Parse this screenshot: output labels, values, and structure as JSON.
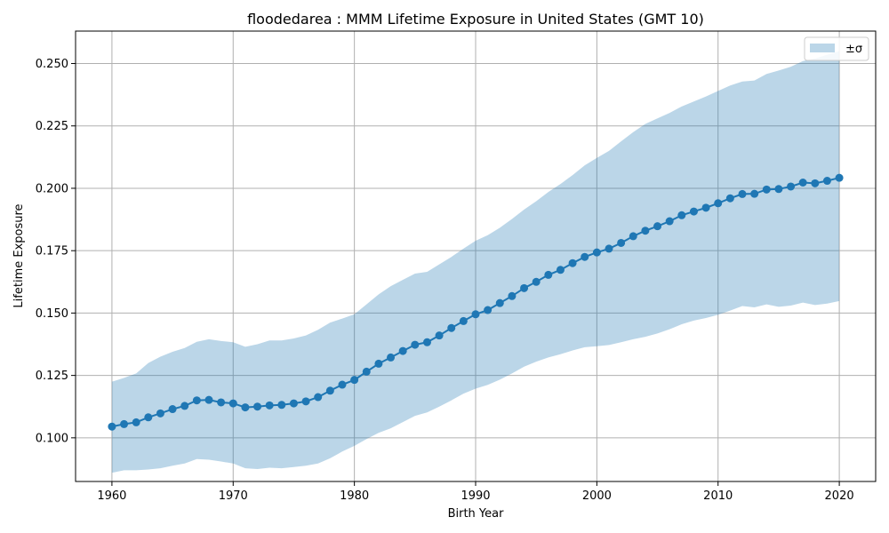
{
  "chart_data": {
    "type": "line",
    "title": "floodedarea : MMM Lifetime Exposure in United States (GMT 10)",
    "xlabel": "Birth Year",
    "ylabel": "Lifetime Exposure",
    "xlim": [
      1957,
      2023
    ],
    "ylim": [
      0.0825,
      0.263
    ],
    "x_ticks": [
      1960,
      1970,
      1980,
      1990,
      2000,
      2010,
      2020
    ],
    "y_ticks": [
      0.1,
      0.125,
      0.15,
      0.175,
      0.2,
      0.225,
      0.25
    ],
    "y_tick_labels": [
      "0.100",
      "0.125",
      "0.150",
      "0.175",
      "0.200",
      "0.225",
      "0.250"
    ],
    "grid": true,
    "legend": {
      "position": "top-right",
      "entries": [
        {
          "label": "±σ",
          "type": "band"
        }
      ]
    },
    "colors": {
      "line": "#1f77b4",
      "band": "#1f77b4",
      "band_alpha": 0.3
    },
    "series": [
      {
        "x": [
          1960,
          1961,
          1962,
          1963,
          1964,
          1965,
          1966,
          1967,
          1968,
          1969,
          1970,
          1971,
          1972,
          1973,
          1974,
          1975,
          1976,
          1977,
          1978,
          1979,
          1980,
          1981,
          1982,
          1983,
          1984,
          1985,
          1986,
          1987,
          1988,
          1989,
          1990,
          1991,
          1992,
          1993,
          1994,
          1995,
          1996,
          1997,
          1998,
          1999,
          2000,
          2001,
          2002,
          2003,
          2004,
          2005,
          2006,
          2007,
          2008,
          2009,
          2010,
          2011,
          2012,
          2013,
          2014,
          2015,
          2016,
          2017,
          2018,
          2019,
          2020
        ],
        "values": [
          0.1045,
          0.1055,
          0.1062,
          0.1082,
          0.1098,
          0.1115,
          0.1128,
          0.115,
          0.1152,
          0.1142,
          0.1138,
          0.1122,
          0.1125,
          0.113,
          0.1132,
          0.1138,
          0.1146,
          0.1163,
          0.1189,
          0.1213,
          0.1232,
          0.1265,
          0.1297,
          0.1322,
          0.1348,
          0.1373,
          0.1383,
          0.141,
          0.144,
          0.1468,
          0.1495,
          0.1512,
          0.154,
          0.1568,
          0.16,
          0.1625,
          0.1653,
          0.1673,
          0.17,
          0.1725,
          0.1743,
          0.1758,
          0.1781,
          0.1808,
          0.183,
          0.1848,
          0.1868,
          0.1892,
          0.1907,
          0.1922,
          0.194,
          0.196,
          0.1977,
          0.1978,
          0.1995,
          0.1997,
          0.2007,
          0.2023,
          0.202,
          0.203,
          0.2042
        ],
        "upper": [
          0.1225,
          0.124,
          0.1258,
          0.13,
          0.1325,
          0.1345,
          0.136,
          0.1385,
          0.1395,
          0.1388,
          0.1383,
          0.1365,
          0.1375,
          0.139,
          0.139,
          0.1398,
          0.141,
          0.1433,
          0.1462,
          0.1478,
          0.1495,
          0.1535,
          0.1575,
          0.1608,
          0.1633,
          0.1658,
          0.1665,
          0.1695,
          0.1725,
          0.1758,
          0.179,
          0.1812,
          0.1842,
          0.1877,
          0.1915,
          0.1948,
          0.1985,
          0.2017,
          0.2053,
          0.2092,
          0.2122,
          0.215,
          0.2188,
          0.2225,
          0.2258,
          0.228,
          0.2302,
          0.2328,
          0.2348,
          0.2368,
          0.239,
          0.2412,
          0.2428,
          0.2432,
          0.2458,
          0.2472,
          0.2487,
          0.251,
          0.252,
          0.2535,
          0.255
        ],
        "lower": [
          0.086,
          0.087,
          0.087,
          0.0873,
          0.0878,
          0.0888,
          0.0897,
          0.0915,
          0.0912,
          0.0905,
          0.0897,
          0.0878,
          0.0875,
          0.088,
          0.0878,
          0.0883,
          0.0888,
          0.0897,
          0.0918,
          0.0945,
          0.0968,
          0.0995,
          0.102,
          0.1038,
          0.1063,
          0.1088,
          0.1102,
          0.1125,
          0.115,
          0.1177,
          0.1197,
          0.1212,
          0.1233,
          0.1258,
          0.1285,
          0.1305,
          0.1322,
          0.1335,
          0.135,
          0.1363,
          0.1367,
          0.1372,
          0.1383,
          0.1395,
          0.1405,
          0.1418,
          0.1435,
          0.1455,
          0.147,
          0.148,
          0.1493,
          0.151,
          0.1528,
          0.1523,
          0.1535,
          0.1525,
          0.153,
          0.1542,
          0.1532,
          0.1538,
          0.1548
        ]
      }
    ]
  }
}
